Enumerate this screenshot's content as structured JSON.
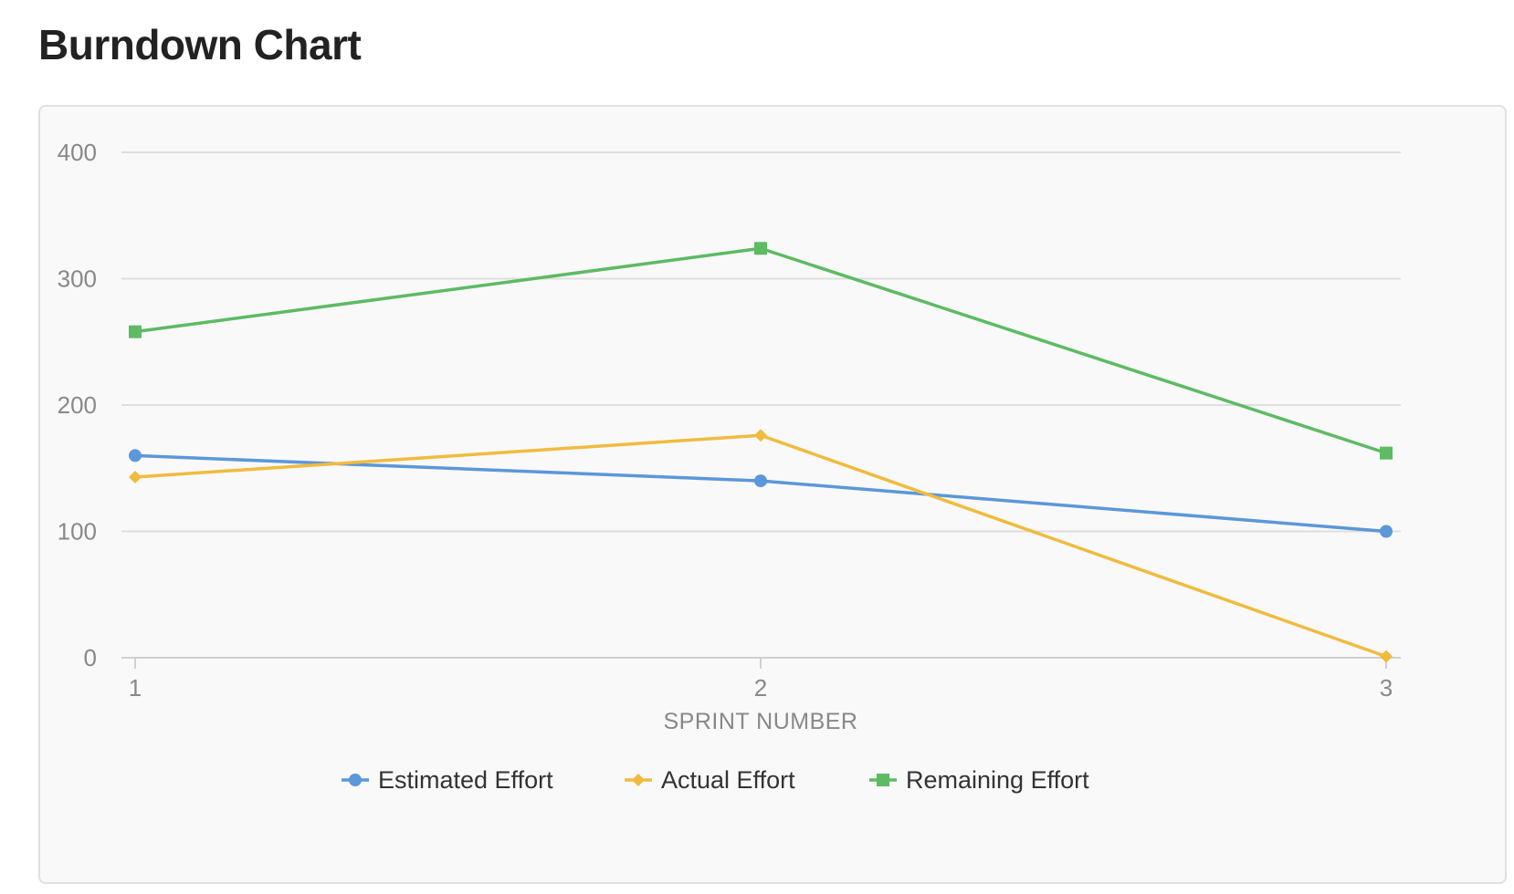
{
  "page": {
    "title": "Burndown Chart"
  },
  "chart_data": {
    "type": "line",
    "title": "",
    "xlabel": "SPRINT NUMBER",
    "ylabel": "",
    "x": [
      1,
      2,
      3
    ],
    "ylim": [
      0,
      400
    ],
    "yticks": [
      0,
      100,
      200,
      300,
      400
    ],
    "grid": true,
    "legend_position": "bottom",
    "series": [
      {
        "name": "Estimated Effort",
        "color": "#5b97d9",
        "marker": "circle",
        "values": [
          160,
          140,
          100
        ]
      },
      {
        "name": "Actual Effort",
        "color": "#f0bb3e",
        "marker": "diamond",
        "values": [
          143,
          176,
          1
        ]
      },
      {
        "name": "Remaining Effort",
        "color": "#5dbb63",
        "marker": "square",
        "values": [
          258,
          324,
          162
        ]
      }
    ]
  }
}
